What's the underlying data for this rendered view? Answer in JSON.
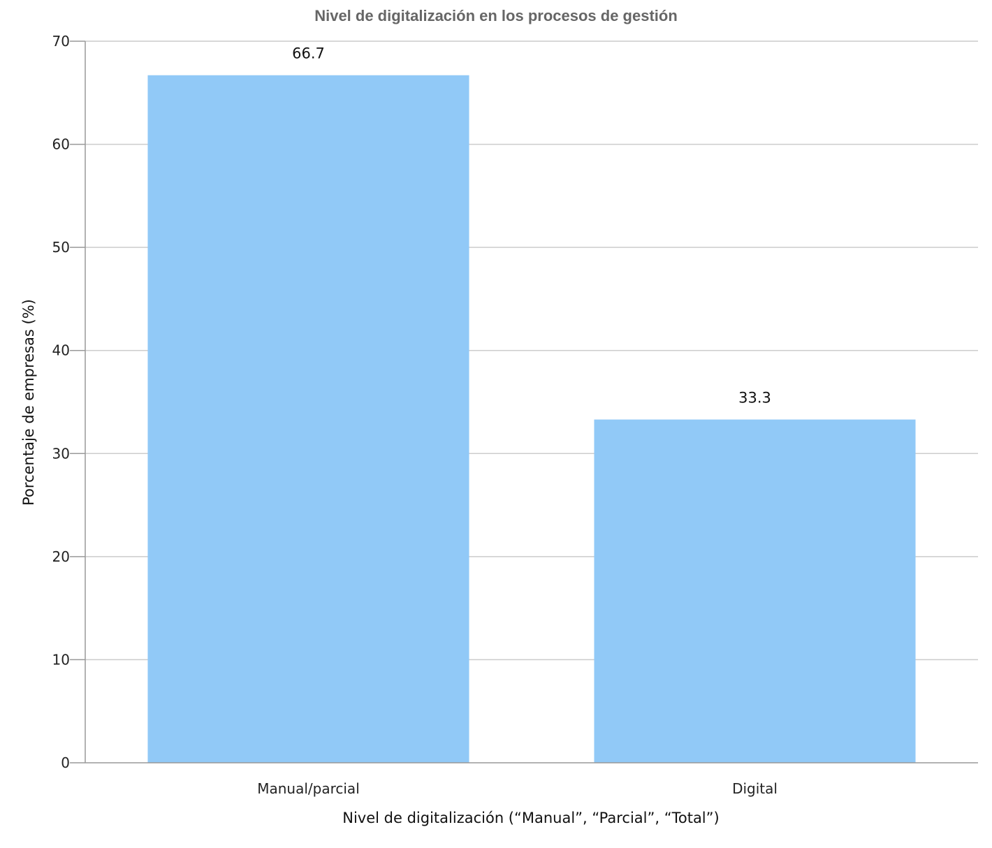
{
  "chart_data": {
    "type": "bar",
    "title": "Nivel de digitalización en los procesos de gestión",
    "xlabel": "Nivel de digitalización (“Manual”, “Parcial”, “Total”)",
    "ylabel": "Porcentaje de empresas (%)",
    "categories": [
      "Manual/parcial",
      "Digital"
    ],
    "values": [
      66.7,
      33.3
    ],
    "data_labels": [
      "66.7",
      "33.3"
    ],
    "ylim": [
      0,
      70
    ],
    "yticks": [
      0,
      10,
      20,
      30,
      40,
      50,
      60,
      70
    ],
    "grid": true,
    "colors": {
      "bar": "#91c9f7",
      "grid": "#cccccc",
      "axis": "#999999",
      "title": "#666666"
    }
  }
}
